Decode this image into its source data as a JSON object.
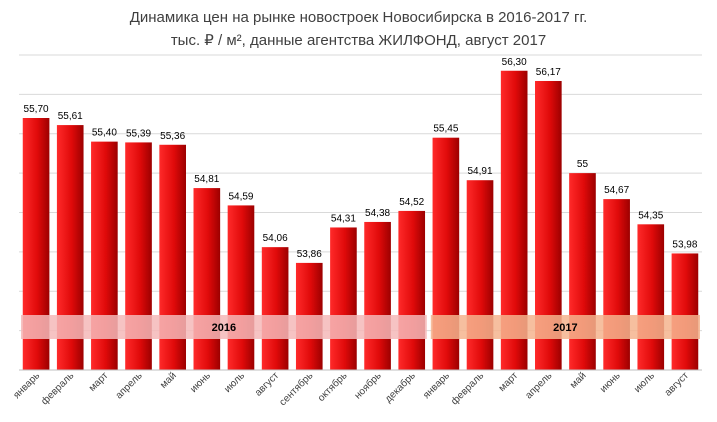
{
  "chart_data": {
    "type": "bar",
    "title": "Динамика цен на рынке новостроек Новосибирска в 2016-2017 гг.",
    "subtitle": "тыс. ₽ / м², данные агентства ЖИЛФОНД, август 2017",
    "categories": [
      "январь",
      "февраль",
      "март",
      "апрель",
      "май",
      "июнь",
      "июль",
      "август",
      "сентябрь",
      "октябрь",
      "ноябрь",
      "декабрь",
      "январь",
      "февраль",
      "март",
      "апрель",
      "май",
      "июнь",
      "июль",
      "август"
    ],
    "values": [
      55.7,
      55.61,
      55.4,
      55.39,
      55.36,
      54.81,
      54.59,
      54.06,
      53.86,
      54.31,
      54.38,
      54.52,
      55.45,
      54.91,
      56.3,
      56.17,
      55.0,
      54.67,
      54.35,
      53.98
    ],
    "value_labels": [
      "55,70",
      "55,61",
      "55,40",
      "55,39",
      "55,36",
      "54,81",
      "54,59",
      "54,06",
      "53,86",
      "54,31",
      "54,38",
      "54,52",
      "55,45",
      "54,91",
      "56,30",
      "56,17",
      "55",
      "54,67",
      "54,35",
      "53,98"
    ],
    "ylim": [
      52.5,
      56.5
    ],
    "grid": true,
    "bar_color": "#e01010",
    "year_bands": [
      {
        "label": "2016",
        "start_index": 0,
        "end_index": 11,
        "color": "#f5b8b8"
      },
      {
        "label": "2017",
        "start_index": 12,
        "end_index": 19,
        "color": "#f5b48e"
      }
    ]
  }
}
